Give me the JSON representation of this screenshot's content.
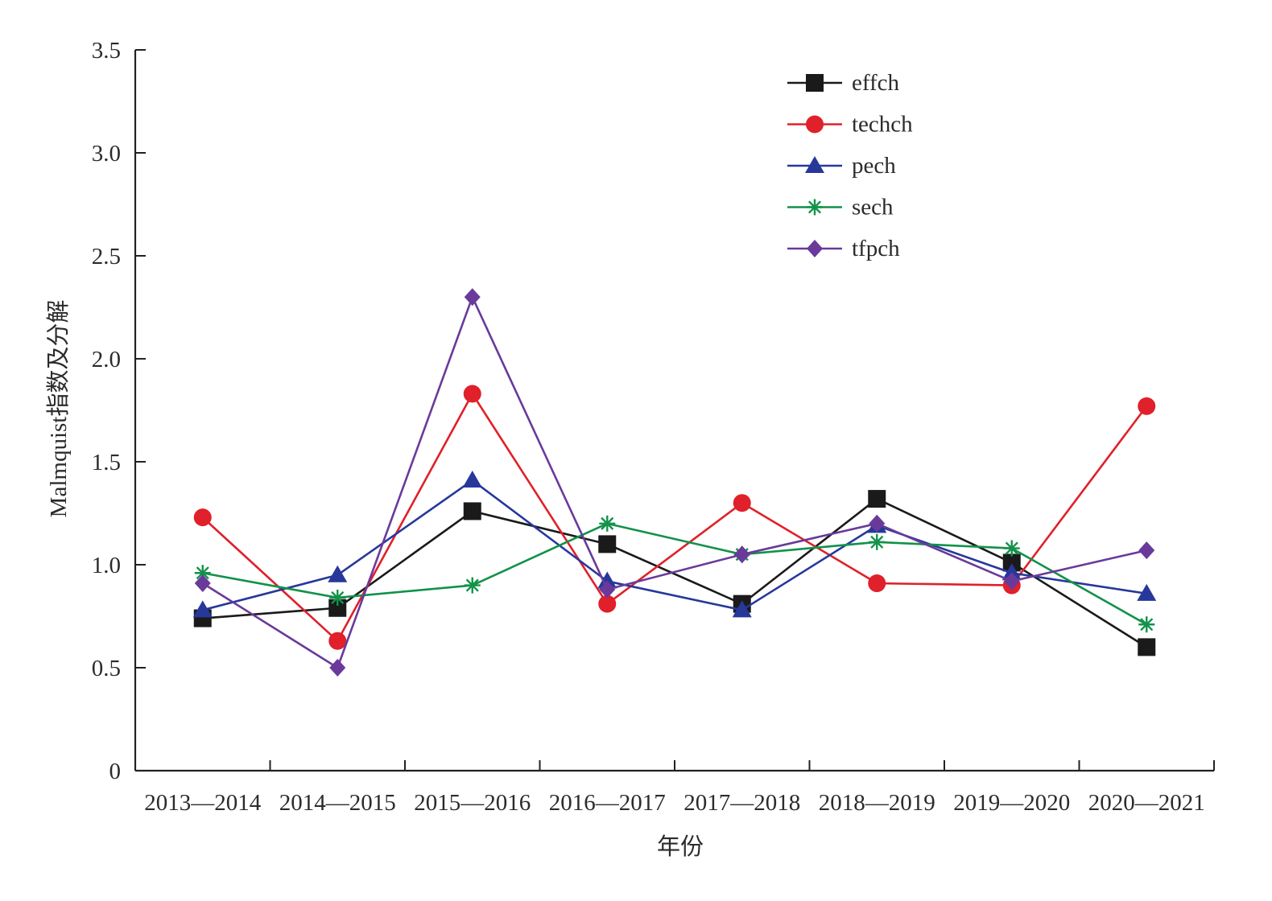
{
  "chart_data": {
    "type": "line",
    "xlabel": "年份",
    "ylabel": "Malmquist指数及分解",
    "categories": [
      "2013—2014",
      "2014—2015",
      "2015—2016",
      "2016—2017",
      "2017—2018",
      "2018—2019",
      "2019—2020",
      "2020—2021"
    ],
    "ylim": [
      0,
      3.5
    ],
    "yticks": [
      0,
      0.5,
      1.0,
      1.5,
      2.0,
      2.5,
      3.0,
      3.5
    ],
    "ytick_labels": [
      "0",
      "0.5",
      "1.0",
      "1.5",
      "2.0",
      "2.5",
      "3.0",
      "3.5"
    ],
    "grid": false,
    "legend_position": "top-right",
    "series": [
      {
        "name": "effch",
        "color": "#1a1a1a",
        "marker": "square",
        "values": [
          0.74,
          0.79,
          1.26,
          1.1,
          0.81,
          1.32,
          1.01,
          0.6
        ]
      },
      {
        "name": "techch",
        "color": "#e0202a",
        "marker": "circle",
        "values": [
          1.23,
          0.63,
          1.83,
          0.81,
          1.3,
          0.91,
          0.9,
          1.77
        ]
      },
      {
        "name": "pech",
        "color": "#27389a",
        "marker": "triangle",
        "values": [
          0.78,
          0.95,
          1.41,
          0.92,
          0.78,
          1.19,
          0.96,
          0.86
        ]
      },
      {
        "name": "sech",
        "color": "#12924a",
        "marker": "asterisk",
        "values": [
          0.96,
          0.84,
          0.9,
          1.2,
          1.05,
          1.11,
          1.08,
          0.71
        ]
      },
      {
        "name": "tfpch",
        "color": "#6a3a9a",
        "marker": "diamond",
        "values": [
          0.91,
          0.5,
          2.3,
          0.88,
          1.05,
          1.2,
          0.92,
          1.07
        ]
      }
    ]
  }
}
